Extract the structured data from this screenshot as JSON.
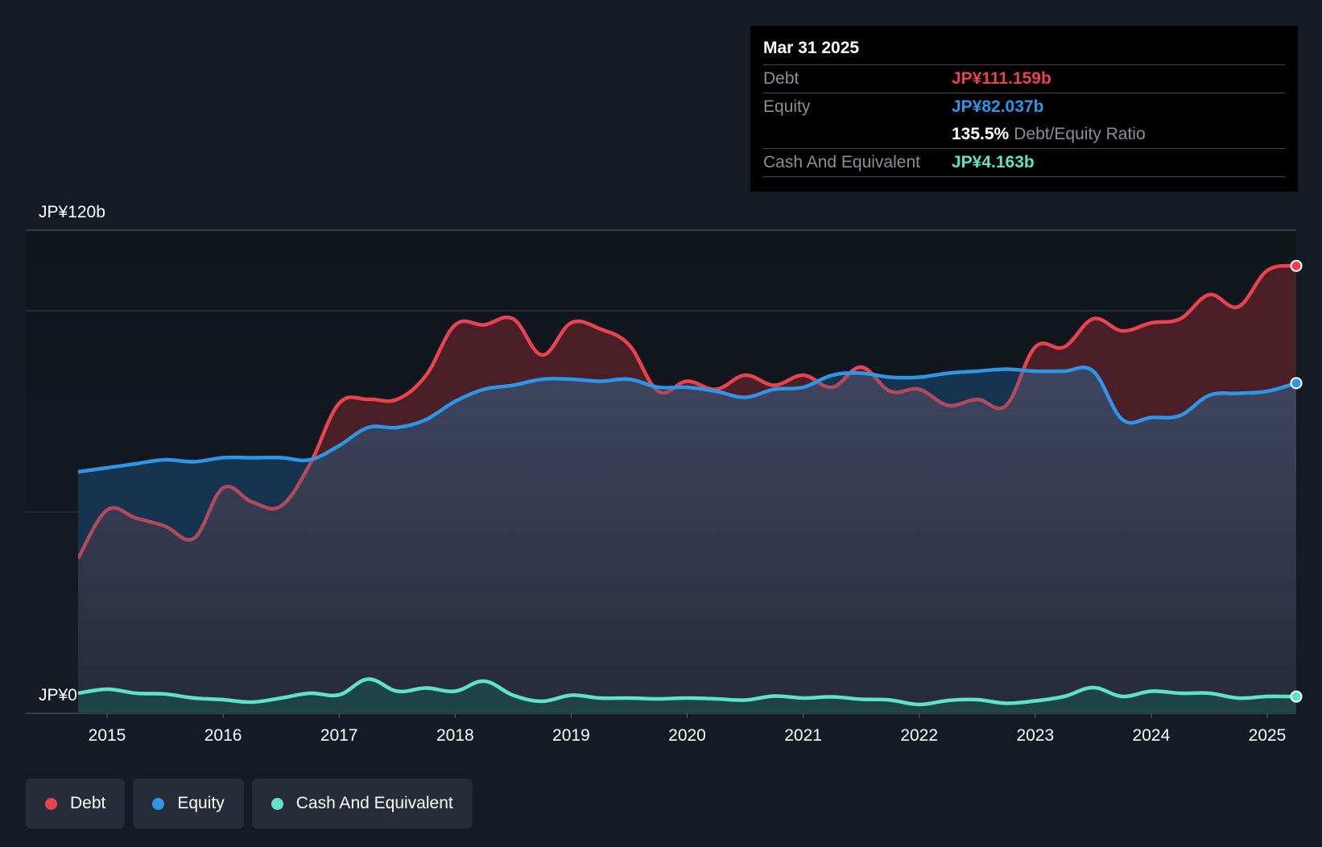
{
  "chart_data": {
    "type": "area",
    "title": "",
    "xlabel": "",
    "ylabel": "",
    "ylim": [
      0,
      120
    ],
    "y_unit_labels": {
      "top": "JP¥120b",
      "bottom": "JP¥0"
    },
    "x_range": [
      2014.58,
      2025.25
    ],
    "x_ticks": [
      2015,
      2016,
      2017,
      2018,
      2019,
      2020,
      2021,
      2022,
      2023,
      2024,
      2025
    ],
    "x_tick_labels": [
      "2015",
      "2016",
      "2017",
      "2018",
      "2019",
      "2020",
      "2021",
      "2022",
      "2023",
      "2024",
      "2025"
    ],
    "gridlines_y": [
      120,
      100,
      50
    ],
    "series": [
      {
        "name": "Debt",
        "color": "#e8434e",
        "x": [
          2014.75,
          2015.0,
          2015.25,
          2015.5,
          2015.75,
          2016.0,
          2016.25,
          2016.5,
          2016.75,
          2017.0,
          2017.25,
          2017.5,
          2017.75,
          2018.0,
          2018.25,
          2018.5,
          2018.75,
          2019.0,
          2019.25,
          2019.5,
          2019.75,
          2020.0,
          2020.25,
          2020.5,
          2020.75,
          2021.0,
          2021.25,
          2021.5,
          2021.75,
          2022.0,
          2022.25,
          2022.5,
          2022.75,
          2023.0,
          2023.25,
          2023.5,
          2023.75,
          2024.0,
          2024.25,
          2024.5,
          2024.75,
          2025.0,
          2025.25
        ],
        "values": [
          38.5,
          50.5,
          48.5,
          46.5,
          43.5,
          56,
          52.5,
          51.5,
          62,
          77,
          78,
          78,
          84,
          96.5,
          96.5,
          98,
          89,
          97,
          95.5,
          91.5,
          80,
          82.5,
          80.5,
          84,
          81.5,
          84,
          81,
          86,
          80,
          80.5,
          76.5,
          78,
          76.5,
          91,
          91,
          98,
          95,
          97,
          98,
          104,
          101,
          110,
          111.159
        ]
      },
      {
        "name": "Equity",
        "color": "#2d96e6",
        "x": [
          2014.75,
          2015.0,
          2015.25,
          2015.5,
          2015.75,
          2016.0,
          2016.25,
          2016.5,
          2016.75,
          2017.0,
          2017.25,
          2017.5,
          2017.75,
          2018.0,
          2018.25,
          2018.5,
          2018.75,
          2019.0,
          2019.25,
          2019.5,
          2019.75,
          2020.0,
          2020.25,
          2020.5,
          2020.75,
          2021.0,
          2021.25,
          2021.5,
          2021.75,
          2022.0,
          2022.25,
          2022.5,
          2022.75,
          2023.0,
          2023.25,
          2023.5,
          2023.75,
          2024.0,
          2024.25,
          2024.5,
          2024.75,
          2025.0,
          2025.25
        ],
        "values": [
          60,
          61,
          62,
          63,
          62.5,
          63.5,
          63.5,
          63.5,
          63,
          66.5,
          71,
          71,
          73,
          77.5,
          80.5,
          81.5,
          83,
          83,
          82.5,
          83,
          81,
          81,
          80,
          78.5,
          80.5,
          81,
          84,
          84.5,
          83.5,
          83.5,
          84.5,
          85,
          85.5,
          85,
          85,
          85,
          73,
          73.5,
          74,
          79,
          79.5,
          80,
          82.037
        ]
      },
      {
        "name": "Cash And Equivalent",
        "color": "#5fe3c8",
        "x": [
          2014.75,
          2015.0,
          2015.25,
          2015.5,
          2015.75,
          2016.0,
          2016.25,
          2016.5,
          2016.75,
          2017.0,
          2017.25,
          2017.5,
          2017.75,
          2018.0,
          2018.25,
          2018.5,
          2018.75,
          2019.0,
          2019.25,
          2019.5,
          2019.75,
          2020.0,
          2020.25,
          2020.5,
          2020.75,
          2021.0,
          2021.25,
          2021.5,
          2021.75,
          2022.0,
          2022.25,
          2022.5,
          2022.75,
          2023.0,
          2023.25,
          2023.5,
          2023.75,
          2024.0,
          2024.25,
          2024.5,
          2024.75,
          2025.0,
          2025.25
        ],
        "values": [
          5,
          6,
          5,
          4.8,
          3.8,
          3.4,
          2.8,
          3.8,
          5,
          4.6,
          8.5,
          5.5,
          6.3,
          5.5,
          8,
          4.5,
          3,
          4.5,
          3.8,
          3.8,
          3.6,
          3.8,
          3.6,
          3.3,
          4.3,
          3.8,
          4.1,
          3.5,
          3.3,
          2.2,
          3.2,
          3.4,
          2.5,
          3.1,
          4.2,
          6.4,
          4.2,
          5.5,
          5,
          5,
          3.8,
          4.2,
          4.163
        ]
      }
    ],
    "tooltip": {
      "date": "Mar 31 2025",
      "debt_label": "Debt",
      "debt_value": "JP¥111.159b",
      "equity_label": "Equity",
      "equity_value": "JP¥82.037b",
      "ratio_value": "135.5%",
      "ratio_label": "Debt/Equity Ratio",
      "cash_label": "Cash And Equivalent",
      "cash_value": "JP¥4.163b"
    },
    "legend": [
      "Debt",
      "Equity",
      "Cash And Equivalent"
    ]
  }
}
